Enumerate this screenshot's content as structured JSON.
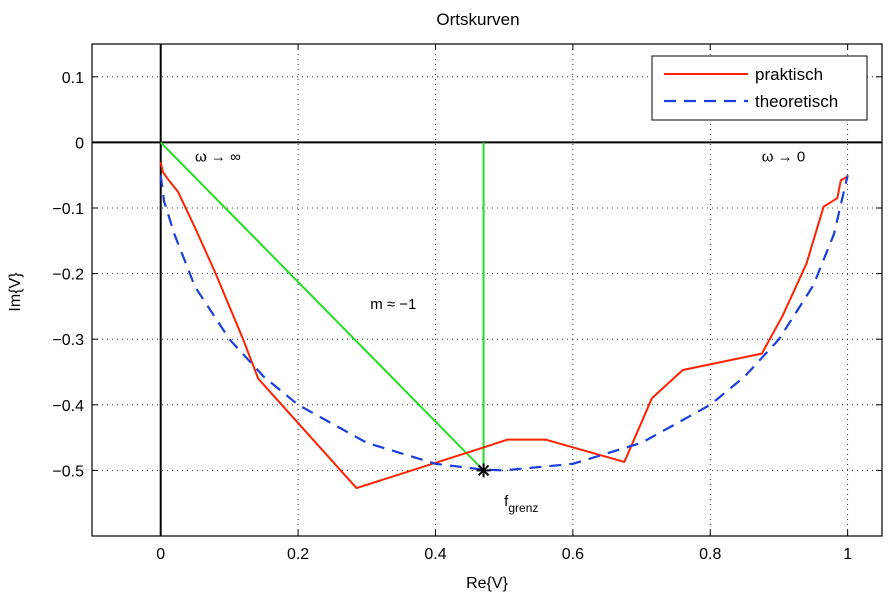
{
  "chart_data": {
    "type": "line",
    "title": "Ortskurven",
    "xlabel": "Re{V}",
    "ylabel": "Im{V}",
    "xlim": [
      -0.1,
      1.05
    ],
    "ylim": [
      -0.6,
      0.15
    ],
    "xticks": [
      0,
      0.2,
      0.4,
      0.6,
      0.8,
      1
    ],
    "xtick_labels": [
      "0",
      "0.2",
      "0.4",
      "0.6",
      "0.8",
      "1"
    ],
    "yticks": [
      0.1,
      0,
      -0.1,
      -0.2,
      -0.3,
      -0.4,
      -0.5
    ],
    "ytick_labels": [
      "0.1",
      "0",
      "−0.1",
      "−0.2",
      "−0.3",
      "−0.4",
      "−0.5"
    ],
    "grid": true,
    "legend_position": "top-right",
    "series": [
      {
        "name": "praktisch",
        "color": "#ff2200",
        "style": "solid",
        "x": [
          0,
          0.003,
          0.012,
          0.025,
          0.05,
          0.08,
          0.12,
          0.142,
          0.285,
          0.47,
          0.505,
          0.56,
          0.675,
          0.715,
          0.76,
          0.875,
          0.905,
          0.94,
          0.965,
          0.985,
          0.99,
          1
        ],
        "y": [
          -0.03,
          -0.045,
          -0.058,
          -0.075,
          -0.13,
          -0.2,
          -0.3,
          -0.36,
          -0.527,
          -0.465,
          -0.453,
          -0.453,
          -0.487,
          -0.39,
          -0.347,
          -0.322,
          -0.265,
          -0.185,
          -0.098,
          -0.085,
          -0.058,
          -0.052
        ]
      },
      {
        "name": "theoretisch",
        "color": "#1a3fdd",
        "style": "dashed",
        "x": [
          0,
          0.005,
          0.02,
          0.05,
          0.1,
          0.15,
          0.2,
          0.3,
          0.4,
          0.47,
          0.5,
          0.6,
          0.7,
          0.8,
          0.85,
          0.9,
          0.95,
          0.98,
          1
        ],
        "y": [
          -0.05,
          -0.09,
          -0.14,
          -0.22,
          -0.3,
          -0.357,
          -0.4,
          -0.458,
          -0.49,
          -0.499,
          -0.5,
          -0.49,
          -0.458,
          -0.4,
          -0.357,
          -0.3,
          -0.218,
          -0.14,
          -0.05
        ]
      }
    ],
    "overlays": [
      {
        "type": "line",
        "color": "#22dd22",
        "x": [
          0,
          0.47
        ],
        "y": [
          0,
          -0.5
        ]
      },
      {
        "type": "line",
        "color": "#22dd22",
        "x": [
          0.47,
          0.47
        ],
        "y": [
          0,
          -0.5
        ]
      }
    ],
    "marker": {
      "x": 0.47,
      "y": -0.5,
      "symbol": "*"
    },
    "annotations": [
      {
        "text": "ω → ∞",
        "x": 0.05,
        "y": -0.02
      },
      {
        "text": "ω → 0",
        "x": 0.875,
        "y": -0.02
      },
      {
        "text": "m ≈ −1",
        "x": 0.305,
        "y": -0.245
      },
      {
        "text": "f",
        "sub": "grenz",
        "x": 0.5,
        "y": -0.545
      }
    ]
  }
}
